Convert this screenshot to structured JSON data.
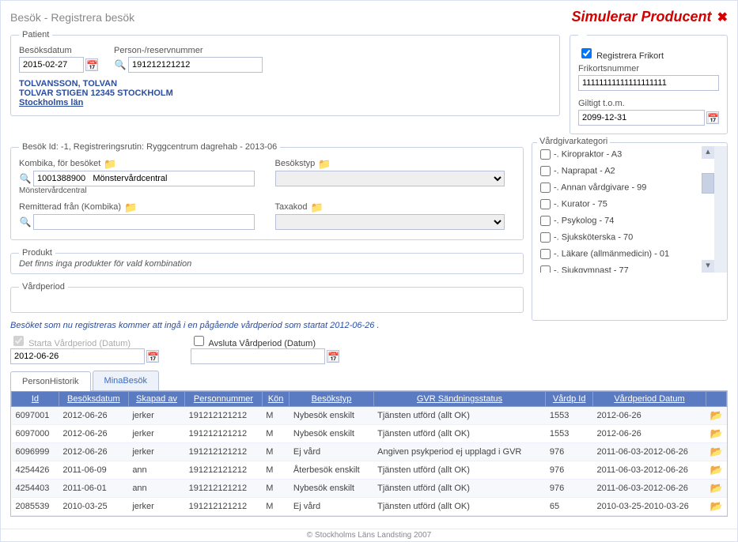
{
  "header": {
    "page_title": "Besök - Registrera besök",
    "simulate_badge": "Simulerar Producent",
    "close_glyph": "✖"
  },
  "patient": {
    "legend": "Patient",
    "visit_date_label": "Besöksdatum",
    "visit_date": "2015-02-27",
    "person_nr_label": "Person-/reservnummer",
    "person_nr": "191212121212",
    "name": "TOLVANSSON, TOLVAN",
    "address": "TOLVAR STIGEN   12345   STOCKHOLM",
    "region": "Stockholms län"
  },
  "frikort": {
    "register_label": "Registrera Frikort",
    "register_checked": true,
    "nr_label": "Frikortsnummer",
    "nr": "11111111111111111111",
    "valid_label": "Giltigt t.o.m.",
    "valid_to": "2099-12-31"
  },
  "visit": {
    "legend": "Besök  Id: -1, Registreringsrutin: Ryggcentrum dagrehab - 2013-06",
    "kombika_label": "Kombika, för besöket",
    "kombika_value": "1001388900   Mönstervårdcentral",
    "kombika_note": "Mönstervårdcentral",
    "besokstyp_label": "Besökstyp",
    "besokstyp_value": "",
    "remitterad_label": "Remitterad från (Kombika)",
    "remitterad_value": "",
    "taxakod_label": "Taxakod",
    "taxakod_value": ""
  },
  "vg": {
    "legend": "Vårdgivarkategori",
    "items": [
      "-. Kiropraktor - A3",
      "-. Naprapat - A2",
      "-. Annan vårdgivare - 99",
      "-. Kurator - 75",
      "-. Psykolog - 74",
      "-. Sjuksköterska - 70",
      "-. Läkare (allmänmedicin) - 01",
      "-. Sjukgymnast - 77"
    ]
  },
  "produkt": {
    "legend": "Produkt",
    "note": "Det finns inga produkter för vald kombination"
  },
  "vardperiod": {
    "legend": "Vårdperiod",
    "note": "Besöket som nu registreras kommer att ingå i en pågående vårdperiod som startat 2012-06-26 .",
    "start_label": "Starta Vårdperiod (Datum)",
    "start_value": "2012-06-26",
    "end_label": "Avsluta Vårdperiod (Datum)",
    "end_value": ""
  },
  "tabs": {
    "active": "PersonHistorik",
    "other": "MinaBesök"
  },
  "table": {
    "columns": [
      "Id",
      "Besöksdatum",
      "Skapad av",
      "Personnummer",
      "Kön",
      "Besökstyp",
      "GVR Sändningsstatus",
      "Vårdp Id",
      "Vårdperiod Datum",
      ""
    ],
    "rows": [
      [
        "6097001",
        "2012-06-26",
        "jerker",
        "191212121212",
        "M",
        "Nybesök enskilt",
        "Tjänsten utförd (allt OK)",
        "1553",
        "2012-06-26"
      ],
      [
        "6097000",
        "2012-06-26",
        "jerker",
        "191212121212",
        "M",
        "Nybesök enskilt",
        "Tjänsten utförd (allt OK)",
        "1553",
        "2012-06-26"
      ],
      [
        "6096999",
        "2012-06-26",
        "jerker",
        "191212121212",
        "M",
        "Ej vård",
        "Angiven psykperiod ej upplagd i GVR",
        "976",
        "2011-06-03-2012-06-26"
      ],
      [
        "4254426",
        "2011-06-09",
        "ann",
        "191212121212",
        "M",
        "Återbesök enskilt",
        "Tjänsten utförd (allt OK)",
        "976",
        "2011-06-03-2012-06-26"
      ],
      [
        "4254403",
        "2011-06-01",
        "ann",
        "191212121212",
        "M",
        "Nybesök enskilt",
        "Tjänsten utförd (allt OK)",
        "976",
        "2011-06-03-2012-06-26"
      ],
      [
        "2085539",
        "2010-03-25",
        "jerker",
        "191212121212",
        "M",
        "Ej vård",
        "Tjänsten utförd (allt OK)",
        "65",
        "2010-03-25-2010-03-26"
      ]
    ]
  },
  "footer": "© Stockholms Läns Landsting 2007",
  "icons": {
    "calendar": "📅",
    "search": "🔍",
    "folder": "📁",
    "open": "📂"
  }
}
